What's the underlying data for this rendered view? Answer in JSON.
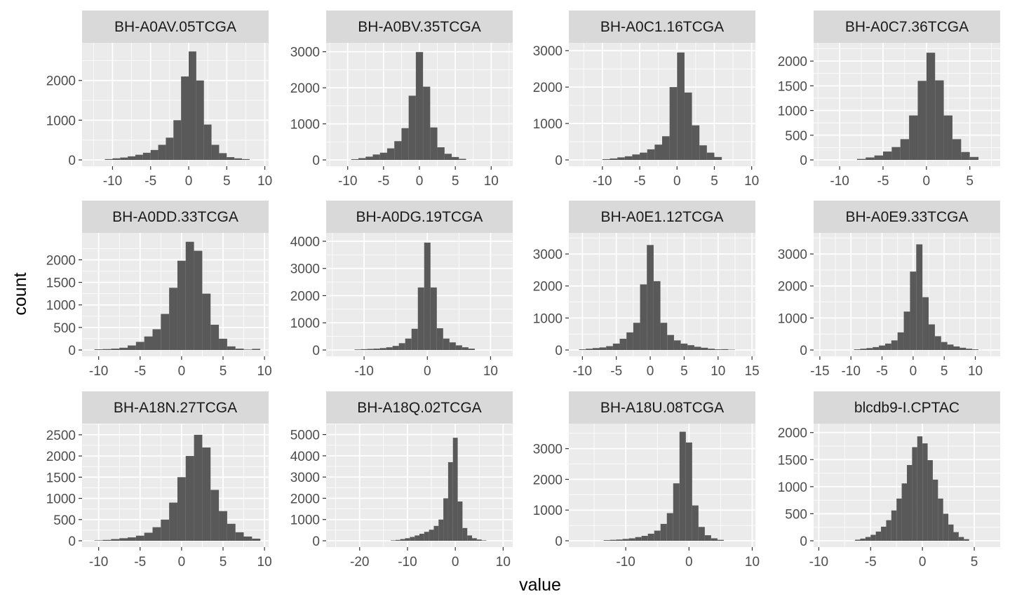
{
  "chart_data": {
    "type": "histogram-facets",
    "xlabel": "value",
    "ylabel": "count",
    "colors": {
      "panel_bg": "#ebebeb",
      "grid": "#ffffff",
      "strip_bg": "#d9d9d9",
      "bar_fill": "#595959"
    },
    "panels": [
      {
        "title": "BH-A0AV.05TCGA",
        "xlim": [
          -14,
          10.5
        ],
        "ylim": [
          0,
          2860
        ],
        "xticks": [
          -10,
          -5,
          0,
          5,
          10
        ],
        "yticks": [
          0,
          1000,
          2000
        ],
        "bins": [
          [
            -10.5,
            20
          ],
          [
            -9.5,
            40
          ],
          [
            -8.5,
            60
          ],
          [
            -7.5,
            90
          ],
          [
            -6.5,
            130
          ],
          [
            -5.5,
            180
          ],
          [
            -4.5,
            250
          ],
          [
            -3.5,
            380
          ],
          [
            -2.5,
            560
          ],
          [
            -1.5,
            1000
          ],
          [
            -0.5,
            2100
          ],
          [
            0.5,
            2730
          ],
          [
            1.5,
            2000
          ],
          [
            2.5,
            890
          ],
          [
            3.5,
            380
          ],
          [
            4.5,
            170
          ],
          [
            5.5,
            70
          ],
          [
            6.5,
            40
          ],
          [
            7.5,
            20
          ]
        ]
      },
      {
        "title": "BH-A0BV.35TCGA",
        "xlim": [
          -13,
          13
        ],
        "ylim": [
          0,
          3150
        ],
        "xticks": [
          -10,
          -5,
          0,
          5,
          10
        ],
        "yticks": [
          0,
          1000,
          2000,
          3000
        ],
        "bins": [
          [
            -9,
            20
          ],
          [
            -8,
            50
          ],
          [
            -7,
            90
          ],
          [
            -6,
            150
          ],
          [
            -5,
            200
          ],
          [
            -4,
            320
          ],
          [
            -3,
            520
          ],
          [
            -2,
            880
          ],
          [
            -1,
            1780
          ],
          [
            0,
            2990
          ],
          [
            1,
            2030
          ],
          [
            2,
            900
          ],
          [
            3,
            350
          ],
          [
            4,
            170
          ],
          [
            5,
            80
          ],
          [
            6,
            30
          ]
        ]
      },
      {
        "title": "BH-A0C1.16TCGA",
        "xlim": [
          -14.5,
          10.5
        ],
        "ylim": [
          0,
          3120
        ],
        "xticks": [
          -10,
          -5,
          0,
          5,
          10
        ],
        "yticks": [
          0,
          1000,
          2000,
          3000
        ],
        "bins": [
          [
            -9.5,
            20
          ],
          [
            -8.5,
            40
          ],
          [
            -7.5,
            70
          ],
          [
            -6.5,
            100
          ],
          [
            -5.5,
            150
          ],
          [
            -4.5,
            200
          ],
          [
            -3.5,
            290
          ],
          [
            -2.5,
            420
          ],
          [
            -1.5,
            650
          ],
          [
            -0.5,
            2000
          ],
          [
            0.5,
            2950
          ],
          [
            1.5,
            1850
          ],
          [
            2.5,
            950
          ],
          [
            3.5,
            400
          ],
          [
            4.5,
            200
          ],
          [
            5.5,
            80
          ]
        ]
      },
      {
        "title": "BH-A0C7.36TCGA",
        "xlim": [
          -13,
          8.5
        ],
        "ylim": [
          0,
          2300
        ],
        "xticks": [
          -10,
          -5,
          0,
          5
        ],
        "yticks": [
          0,
          500,
          1000,
          1500,
          2000
        ],
        "bins": [
          [
            -7.5,
            20
          ],
          [
            -6.5,
            50
          ],
          [
            -5.5,
            90
          ],
          [
            -4.5,
            170
          ],
          [
            -3.5,
            260
          ],
          [
            -2.5,
            420
          ],
          [
            -1.5,
            900
          ],
          [
            -0.5,
            1600
          ],
          [
            0.5,
            2170
          ],
          [
            1.5,
            1610
          ],
          [
            2.5,
            900
          ],
          [
            3.5,
            420
          ],
          [
            4.5,
            160
          ],
          [
            5.5,
            60
          ]
        ]
      },
      {
        "title": "BH-A0DD.33TCGA",
        "xlim": [
          -12,
          10.5
        ],
        "ylim": [
          0,
          2520
        ],
        "xticks": [
          -10,
          -5,
          0,
          5,
          10
        ],
        "yticks": [
          0,
          500,
          1000,
          1500,
          2000
        ],
        "bins": [
          [
            -10,
            15
          ],
          [
            -9,
            20
          ],
          [
            -8,
            30
          ],
          [
            -7,
            50
          ],
          [
            -6,
            100
          ],
          [
            -5,
            180
          ],
          [
            -4,
            300
          ],
          [
            -3,
            460
          ],
          [
            -2,
            800
          ],
          [
            -1,
            1380
          ],
          [
            0,
            1980
          ],
          [
            1,
            2400
          ],
          [
            2,
            2200
          ],
          [
            3,
            1250
          ],
          [
            4,
            560
          ],
          [
            5,
            250
          ],
          [
            6,
            80
          ],
          [
            7,
            30
          ],
          [
            8,
            10
          ],
          [
            9,
            25
          ]
        ]
      },
      {
        "title": "BH-A0DG.19TCGA",
        "xlim": [
          -16,
          13.5
        ],
        "ylim": [
          0,
          4180
        ],
        "xticks": [
          -10,
          0,
          10
        ],
        "yticks": [
          0,
          1000,
          2000,
          3000,
          4000
        ],
        "bins": [
          [
            -11,
            20
          ],
          [
            -10,
            30
          ],
          [
            -9,
            40
          ],
          [
            -8,
            50
          ],
          [
            -7,
            70
          ],
          [
            -6,
            100
          ],
          [
            -5,
            150
          ],
          [
            -4,
            250
          ],
          [
            -3,
            420
          ],
          [
            -2,
            780
          ],
          [
            -1,
            2300
          ],
          [
            0,
            3950
          ],
          [
            1,
            2300
          ],
          [
            2,
            800
          ],
          [
            3,
            420
          ],
          [
            4,
            280
          ],
          [
            5,
            170
          ],
          [
            6,
            100
          ],
          [
            7,
            50
          ]
        ]
      },
      {
        "title": "BH-A0E1.12TCGA",
        "xlim": [
          -12,
          15.5
        ],
        "ylim": [
          0,
          3550
        ],
        "xticks": [
          -10,
          -5,
          0,
          5,
          10,
          15
        ],
        "yticks": [
          0,
          1000,
          2000,
          3000
        ],
        "bins": [
          [
            -10,
            20
          ],
          [
            -9,
            40
          ],
          [
            -8,
            60
          ],
          [
            -7,
            80
          ],
          [
            -6,
            120
          ],
          [
            -5,
            200
          ],
          [
            -4,
            350
          ],
          [
            -3,
            550
          ],
          [
            -2,
            850
          ],
          [
            -1,
            2050
          ],
          [
            0,
            3280
          ],
          [
            1,
            2150
          ],
          [
            2,
            850
          ],
          [
            3,
            470
          ],
          [
            4,
            300
          ],
          [
            5,
            200
          ],
          [
            6,
            150
          ],
          [
            7,
            100
          ],
          [
            8,
            70
          ],
          [
            9,
            40
          ],
          [
            10,
            20
          ],
          [
            11,
            25
          ],
          [
            12,
            10
          ]
        ]
      },
      {
        "title": "BH-A0E9.33TCGA",
        "xlim": [
          -16,
          14
        ],
        "ylim": [
          0,
          3550
        ],
        "xticks": [
          -15,
          -10,
          -5,
          0,
          5,
          10
        ],
        "yticks": [
          0,
          1000,
          2000,
          3000
        ],
        "bins": [
          [
            -9,
            20
          ],
          [
            -8,
            40
          ],
          [
            -7,
            60
          ],
          [
            -6,
            90
          ],
          [
            -5,
            140
          ],
          [
            -4,
            200
          ],
          [
            -3,
            300
          ],
          [
            -2,
            550
          ],
          [
            -1,
            1200
          ],
          [
            0,
            2450
          ],
          [
            1,
            3300
          ],
          [
            2,
            1650
          ],
          [
            3,
            800
          ],
          [
            4,
            430
          ],
          [
            5,
            250
          ],
          [
            6,
            170
          ],
          [
            7,
            110
          ],
          [
            8,
            70
          ],
          [
            9,
            40
          ],
          [
            10,
            20
          ]
        ]
      },
      {
        "title": "BH-A18N.27TCGA",
        "xlim": [
          -12,
          10.5
        ],
        "ylim": [
          0,
          2680
        ],
        "xticks": [
          -10,
          -5,
          0,
          5,
          10
        ],
        "yticks": [
          0,
          500,
          1000,
          1500,
          2000,
          2500
        ],
        "bins": [
          [
            -10,
            10
          ],
          [
            -9,
            20
          ],
          [
            -8,
            40
          ],
          [
            -7,
            60
          ],
          [
            -6,
            80
          ],
          [
            -5,
            120
          ],
          [
            -4,
            190
          ],
          [
            -3,
            320
          ],
          [
            -2,
            500
          ],
          [
            -1,
            900
          ],
          [
            0,
            1500
          ],
          [
            1,
            2000
          ],
          [
            2,
            2500
          ],
          [
            3,
            2200
          ],
          [
            4,
            1200
          ],
          [
            5,
            700
          ],
          [
            6,
            400
          ],
          [
            7,
            200
          ],
          [
            8,
            100
          ],
          [
            9,
            50
          ]
        ]
      },
      {
        "title": "BH-A18Q.02TCGA",
        "xlim": [
          -27,
          12
        ],
        "ylim": [
          0,
          5350
        ],
        "xticks": [
          -20,
          -10,
          0,
          10
        ],
        "yticks": [
          0,
          1000,
          2000,
          3000,
          4000,
          5000
        ],
        "bins": [
          [
            -13,
            20
          ],
          [
            -12,
            40
          ],
          [
            -11,
            80
          ],
          [
            -10,
            120
          ],
          [
            -9,
            180
          ],
          [
            -8,
            250
          ],
          [
            -7,
            330
          ],
          [
            -6,
            420
          ],
          [
            -5,
            520
          ],
          [
            -4,
            700
          ],
          [
            -3,
            1000
          ],
          [
            -2,
            2000
          ],
          [
            -1,
            3700
          ],
          [
            0,
            4850
          ],
          [
            1,
            1850
          ],
          [
            2,
            600
          ],
          [
            3,
            250
          ],
          [
            4,
            120
          ],
          [
            5,
            60
          ],
          [
            6,
            20
          ]
        ]
      },
      {
        "title": "BH-A18U.08TCGA",
        "xlim": [
          -19,
          10.5
        ],
        "ylim": [
          0,
          3700
        ],
        "xticks": [
          -10,
          0,
          10
        ],
        "yticks": [
          0,
          1000,
          2000,
          3000
        ],
        "bins": [
          [
            -13,
            20
          ],
          [
            -12,
            30
          ],
          [
            -11,
            40
          ],
          [
            -10,
            60
          ],
          [
            -9,
            80
          ],
          [
            -8,
            120
          ],
          [
            -7,
            160
          ],
          [
            -6,
            230
          ],
          [
            -5,
            330
          ],
          [
            -4,
            550
          ],
          [
            -3,
            900
          ],
          [
            -2,
            1870
          ],
          [
            -1,
            3550
          ],
          [
            0,
            3200
          ],
          [
            1,
            1150
          ],
          [
            2,
            450
          ],
          [
            3,
            180
          ],
          [
            4,
            80
          ],
          [
            5,
            30
          ]
        ]
      },
      {
        "title": "blcdb9-I.CPTAC",
        "xlim": [
          -10.5,
          7.5
        ],
        "ylim": [
          0,
          2100
        ],
        "xticks": [
          -10,
          -5,
          0,
          5
        ],
        "yticks": [
          0,
          500,
          1000,
          1500,
          2000
        ],
        "bins": [
          [
            -6.25,
            20
          ],
          [
            -5.75,
            40
          ],
          [
            -5.25,
            70
          ],
          [
            -4.75,
            110
          ],
          [
            -4.25,
            170
          ],
          [
            -3.75,
            260
          ],
          [
            -3.25,
            380
          ],
          [
            -2.75,
            560
          ],
          [
            -2.25,
            780
          ],
          [
            -1.75,
            1060
          ],
          [
            -1.25,
            1400
          ],
          [
            -0.75,
            1730
          ],
          [
            -0.25,
            1930
          ],
          [
            0.25,
            1800
          ],
          [
            0.75,
            1490
          ],
          [
            1.25,
            1130
          ],
          [
            1.75,
            780
          ],
          [
            2.25,
            500
          ],
          [
            2.75,
            300
          ],
          [
            3.25,
            160
          ],
          [
            3.75,
            70
          ],
          [
            4.25,
            30
          ]
        ]
      }
    ]
  }
}
